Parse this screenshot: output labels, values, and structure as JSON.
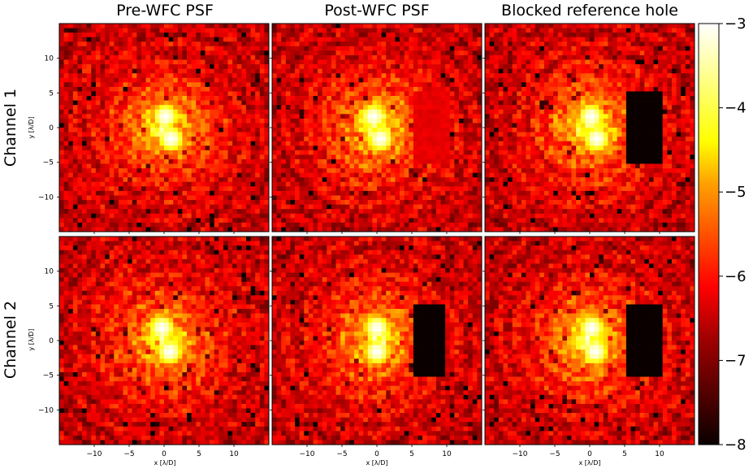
{
  "chart_data": {
    "type": "heatmap",
    "colormap": "hot",
    "column_titles": [
      "Pre-WFC PSF",
      "Post-WFC PSF",
      "Blocked reference hole"
    ],
    "row_titles": [
      "Channel 1",
      "Channel 2"
    ],
    "xlabel": "x [λ/D]",
    "ylabel": "y [λ/D]",
    "xlim": [
      -15,
      15
    ],
    "ylim": [
      -15,
      15
    ],
    "x_ticks": [
      -10,
      -5,
      0,
      5,
      10
    ],
    "y_ticks": [
      10,
      5,
      0,
      -5,
      -10
    ],
    "x_tick_labels": [
      "−10",
      "−5",
      "0",
      "5",
      "10"
    ],
    "y_tick_labels": [
      "10",
      "5",
      "0",
      "−5",
      "−10"
    ],
    "colorbar": {
      "range": [
        -8,
        -3
      ],
      "ticks": [
        -3,
        -4,
        -5,
        -6,
        -7,
        -8
      ],
      "tick_labels": [
        "−3",
        "−4",
        "−5",
        "−6",
        "−7",
        "−8"
      ]
    },
    "panels": [
      {
        "row": "Channel 1",
        "column": "Pre-WFC PSF",
        "cores": [
          {
            "x": 0.2,
            "y": 1.6
          },
          {
            "x": 1.0,
            "y": -1.6
          }
        ],
        "region": null
      },
      {
        "row": "Channel 1",
        "column": "Post-WFC PSF",
        "cores": [
          {
            "x": -0.5,
            "y": 1.6
          },
          {
            "x": 0.5,
            "y": -1.6
          }
        ],
        "region": {
          "x": [
            5,
            10.5
          ],
          "y": [
            -5.5,
            5.5
          ],
          "level": -6.3
        }
      },
      {
        "row": "Channel 1",
        "column": "Blocked reference hole",
        "cores": [
          {
            "x": 0.2,
            "y": 1.6
          },
          {
            "x": 1.0,
            "y": -1.6
          }
        ],
        "region": {
          "x": [
            5.5,
            10.5
          ],
          "y": [
            -5.5,
            5.5
          ],
          "level": -8
        }
      },
      {
        "row": "Channel 2",
        "column": "Pre-WFC PSF",
        "cores": [
          {
            "x": -0.3,
            "y": 1.8
          },
          {
            "x": 0.8,
            "y": -1.6
          }
        ],
        "region": null
      },
      {
        "row": "Channel 2",
        "column": "Post-WFC PSF",
        "cores": [
          {
            "x": 0.0,
            "y": 1.8
          },
          {
            "x": 0.0,
            "y": -1.6
          }
        ],
        "region": {
          "x": [
            5,
            10
          ],
          "y": [
            -5.5,
            5.5
          ],
          "level": -8
        }
      },
      {
        "row": "Channel 2",
        "column": "Blocked reference hole",
        "cores": [
          {
            "x": 0.3,
            "y": 1.8
          },
          {
            "x": 0.8,
            "y": -1.6
          }
        ],
        "region": {
          "x": [
            5.5,
            10.5
          ],
          "y": [
            -5.5,
            5.5
          ],
          "level": -8
        }
      }
    ]
  }
}
